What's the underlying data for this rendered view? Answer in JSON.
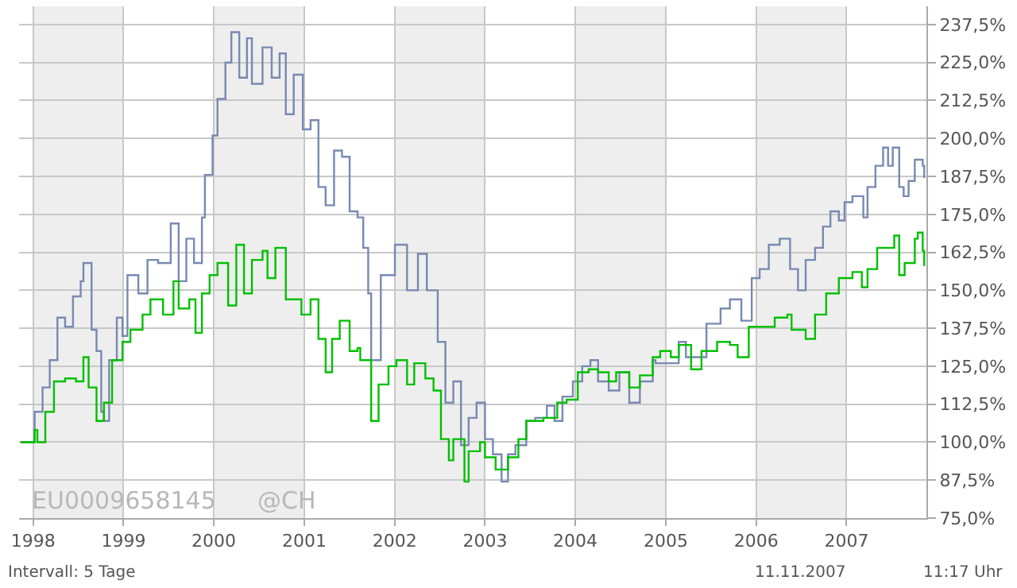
{
  "chart_data": {
    "type": "step",
    "xlim": [
      "1997-11-05",
      "2007-11-20"
    ],
    "ylim": [
      75,
      243.5
    ],
    "xticks": [
      "1998",
      "1999",
      "2000",
      "2001",
      "2002",
      "2003",
      "2004",
      "2005",
      "2006",
      "2007"
    ],
    "yticks": [
      {
        "value": 75,
        "label": "75,0%"
      },
      {
        "value": 87.5,
        "label": "87,5%"
      },
      {
        "value": 100,
        "label": "100,0%"
      },
      {
        "value": 112.5,
        "label": "112,5%"
      },
      {
        "value": 125,
        "label": "125,0%"
      },
      {
        "value": 137.5,
        "label": "137,5%"
      },
      {
        "value": 150,
        "label": "150,0%"
      },
      {
        "value": 162.5,
        "label": "162,5%"
      },
      {
        "value": 175,
        "label": "175,0%"
      },
      {
        "value": 187.5,
        "label": "187,5%"
      },
      {
        "value": 200,
        "label": "200,0%"
      },
      {
        "value": 212.5,
        "label": "212,5%"
      },
      {
        "value": 225,
        "label": "225,0%"
      },
      {
        "value": 237.5,
        "label": "237,5%"
      }
    ],
    "grid": true,
    "bands": [
      {
        "axis": "x",
        "from": "1998",
        "to": "1999",
        "color": "#eeeeee"
      },
      {
        "axis": "x",
        "from": "2000",
        "to": "2001",
        "color": "#eeeeee"
      },
      {
        "axis": "x",
        "from": "2002",
        "to": "2003",
        "color": "#eeeeee"
      },
      {
        "axis": "x",
        "from": "2004",
        "to": "2005",
        "color": "#eeeeee"
      },
      {
        "axis": "x",
        "from": "2006",
        "to": "2007",
        "color": "#eeeeee"
      }
    ],
    "annotations": [
      "EU0009658145",
      "@CH",
      "Intervall: 5 Tage",
      "11.11.2007",
      "11:17 Uhr"
    ],
    "series": [
      {
        "color": "#7889b1",
        "x": [
          "1997-11-11",
          "1998-01-07",
          "1998-02-08",
          "1998-03-09",
          "1998-04-09",
          "1998-05-10",
          "1998-06-11",
          "1998-07-12",
          "1998-07-23",
          "1998-08-25",
          "1998-09-14",
          "1998-10-03",
          "1998-10-14",
          "1998-11-04",
          "1998-12-05",
          "1998-12-28",
          "1999-01-17",
          "1999-03-02",
          "1999-04-08",
          "1999-05-21",
          "1999-07-11",
          "1999-08-12",
          "1999-09-12",
          "1999-10-13",
          "1999-11-14",
          "1999-11-26",
          "1999-12-27",
          "2000-01-16",
          "2000-02-17",
          "2000-03-12",
          "2000-04-13",
          "2000-05-14",
          "2000-06-03",
          "2000-07-16",
          "2000-08-22",
          "2000-09-23",
          "2000-10-18",
          "2000-11-19",
          "2000-12-26",
          "2001-01-26",
          "2001-02-27",
          "2001-03-28",
          "2001-05-01",
          "2001-06-02",
          "2001-07-03",
          "2001-08-04",
          "2001-08-27",
          "2001-09-16",
          "2001-09-28",
          "2001-11-06",
          "2002-01-02",
          "2002-02-20",
          "2002-04-05",
          "2002-05-11",
          "2002-06-24",
          "2002-07-25",
          "2002-08-26",
          "2002-09-26",
          "2002-10-27",
          "2002-11-28",
          "2003-01-01",
          "2003-02-02",
          "2003-03-09",
          "2003-04-04",
          "2003-05-04",
          "2003-06-17",
          "2003-07-23",
          "2003-09-08",
          "2003-10-09",
          "2003-11-10",
          "2003-12-22",
          "2004-01-29",
          "2004-03-02",
          "2004-04-02",
          "2004-05-15",
          "2004-06-27",
          "2004-08-06",
          "2004-09-18",
          "2004-11-09",
          "2004-11-20",
          "2005-02-22",
          "2005-03-23",
          "2005-04-24",
          "2005-06-14",
          "2005-08-10",
          "2005-09-17",
          "2005-11-02",
          "2005-12-14",
          "2006-01-15",
          "2006-02-21",
          "2006-04-06",
          "2006-05-18",
          "2006-06-19",
          "2006-07-20",
          "2006-08-27",
          "2006-09-28",
          "2006-10-28",
          "2006-12-01",
          "2006-12-24",
          "2007-01-25",
          "2007-03-10",
          "2007-03-27",
          "2007-04-28",
          "2007-05-29",
          "2007-06-18",
          "2007-07-07",
          "2007-08-02",
          "2007-08-20",
          "2007-09-09",
          "2007-10-04",
          "2007-11-05",
          "2007-11-11"
        ],
        "values": [
          100,
          110,
          118,
          127,
          141,
          138,
          148,
          153,
          159,
          137,
          130,
          110,
          107,
          127,
          141,
          135,
          155,
          149,
          160,
          159,
          172,
          153,
          167,
          159,
          174,
          188,
          201,
          213,
          225,
          235,
          220,
          233,
          218,
          230,
          220,
          228,
          208,
          221,
          203,
          206,
          184,
          178,
          196,
          194,
          176,
          174,
          164,
          149,
          127,
          155,
          165,
          150,
          162,
          150,
          133,
          113,
          120,
          99,
          108,
          113,
          101,
          96,
          87,
          96,
          99,
          107,
          108,
          112,
          107,
          115,
          120,
          125,
          127,
          120,
          117,
          123,
          113,
          120,
          127,
          126,
          133,
          128,
          128,
          139,
          144,
          147,
          140,
          154,
          157,
          165,
          167,
          157,
          150,
          160,
          164,
          171,
          176,
          173,
          179,
          181,
          174,
          184,
          191,
          197,
          191,
          197,
          184,
          181,
          186,
          193,
          191,
          187
        ]
      },
      {
        "color": "#00c000",
        "x": [
          "1997-11-11",
          "1998-01-07",
          "1998-01-18",
          "1998-02-19",
          "1998-03-26",
          "1998-05-10",
          "1998-06-23",
          "1998-07-23",
          "1998-08-13",
          "1998-09-14",
          "1998-10-14",
          "1998-11-16",
          "1998-12-28",
          "1999-01-29",
          "1999-03-19",
          "1999-04-20",
          "1999-06-10",
          "1999-07-22",
          "1999-08-12",
          "1999-09-24",
          "1999-10-19",
          "1999-11-14",
          "1999-12-15",
          "2000-01-16",
          "2000-02-28",
          "2000-04-01",
          "2000-05-02",
          "2000-06-03",
          "2000-07-16",
          "2000-08-05",
          "2000-09-06",
          "2000-10-18",
          "2000-11-19",
          "2000-12-20",
          "2001-01-26",
          "2001-02-27",
          "2001-03-28",
          "2001-04-23",
          "2001-05-24",
          "2001-07-03",
          "2001-08-04",
          "2001-08-15",
          "2001-09-28",
          "2001-10-28",
          "2001-12-07",
          "2002-01-08",
          "2002-02-20",
          "2002-03-21",
          "2002-05-05",
          "2002-06-07",
          "2002-07-07",
          "2002-08-08",
          "2002-08-26",
          "2002-10-10",
          "2002-10-27",
          "2002-12-12",
          "2003-01-01",
          "2003-02-13",
          "2003-04-04",
          "2003-05-16",
          "2003-06-17",
          "2003-07-23",
          "2003-08-25",
          "2003-10-20",
          "2003-11-27",
          "2004-01-11",
          "2004-02-24",
          "2004-04-02",
          "2004-05-15",
          "2004-06-14",
          "2004-08-06",
          "2004-09-18",
          "2004-11-09",
          "2004-12-09",
          "2005-01-21",
          "2005-02-22",
          "2005-04-13",
          "2005-05-25",
          "2005-07-27",
          "2005-09-17",
          "2005-10-18",
          "2005-12-02",
          "2006-01-21",
          "2006-03-17",
          "2006-05-07",
          "2006-05-24",
          "2006-07-20",
          "2006-08-27",
          "2006-10-11",
          "2006-12-01",
          "2007-01-25",
          "2007-03-04",
          "2007-03-27",
          "2007-05-05",
          "2007-06-18",
          "2007-07-13",
          "2007-08-02",
          "2007-08-24",
          "2007-10-04",
          "2007-10-16",
          "2007-11-05",
          "2007-11-11"
        ],
        "values": [
          100,
          104,
          100,
          110,
          120,
          121,
          120,
          128,
          118,
          107,
          113,
          127,
          133,
          137,
          142,
          147,
          142,
          153,
          144,
          147,
          136,
          149,
          155,
          159,
          145,
          165,
          149,
          160,
          163,
          154,
          164,
          147,
          147,
          142,
          147,
          134,
          123,
          134,
          140,
          130,
          131,
          127,
          107,
          119,
          125,
          127,
          119,
          126,
          121,
          117,
          101,
          94,
          101,
          87,
          97,
          100,
          95,
          91,
          95,
          101,
          107,
          107,
          108,
          113,
          114,
          123,
          124,
          123,
          120,
          123,
          118,
          122,
          128,
          130,
          128,
          132,
          124,
          130,
          133,
          132,
          128,
          138,
          138,
          141,
          142,
          137,
          134,
          142,
          149,
          154,
          156,
          151,
          157,
          164,
          164,
          168,
          155,
          159,
          167,
          169,
          163,
          158
        ]
      }
    ]
  }
}
